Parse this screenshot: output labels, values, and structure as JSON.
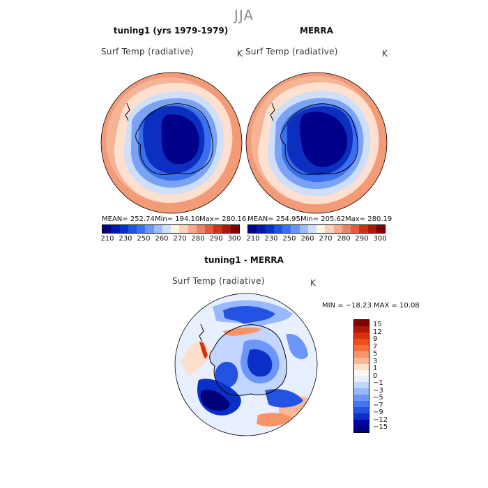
{
  "season": "JJA",
  "panels": [
    {
      "title": "tuning1 (yrs 1979-1979)",
      "variable": "Surf Temp (radiative)",
      "units": "K",
      "mean": "MEAN= 252.74",
      "min": "Min= 194.10",
      "max": "Max= 280.16"
    },
    {
      "title": "MERRA",
      "variable": "Surf Temp (radiative)",
      "units": "K",
      "mean": "MEAN= 254.95",
      "min": "Min= 205.62",
      "max": "Max= 280.19"
    }
  ],
  "diff": {
    "title": "tuning1 - MERRA",
    "variable": "Surf Temp (radiative)",
    "units": "K",
    "range": "MIN = −18.23 MAX =  10.08"
  },
  "abs_colorbar": {
    "colors": [
      "#00008b",
      "#0018b0",
      "#0033cc",
      "#1a55e0",
      "#3a72ee",
      "#6a97f5",
      "#9ebcf8",
      "#cfdff9",
      "#fff2e6",
      "#fcd2bb",
      "#f6aa8c",
      "#ee8466",
      "#e45a3d",
      "#cc3414",
      "#a81a08",
      "#7a0000"
    ],
    "ticks": [
      "210",
      "230",
      "250",
      "260",
      "270",
      "280",
      "290",
      "300"
    ]
  },
  "diff_colorbar": {
    "colors": [
      "#800000",
      "#b01806",
      "#d8300e",
      "#ee4f1a",
      "#f56f3a",
      "#f89468",
      "#fbb897",
      "#fde0cc",
      "#fff7f0",
      "#e8f0ff",
      "#c2d6ff",
      "#98b8ff",
      "#6c96fa",
      "#4676f0",
      "#2452e2",
      "#0a30c8",
      "#0000a8",
      "#00007a"
    ],
    "ticks": [
      "15",
      "12",
      "9",
      "7",
      "5",
      "3",
      "1",
      "0",
      "−1",
      "−3",
      "−5",
      "−7",
      "−9",
      "−12",
      "−15"
    ]
  }
}
